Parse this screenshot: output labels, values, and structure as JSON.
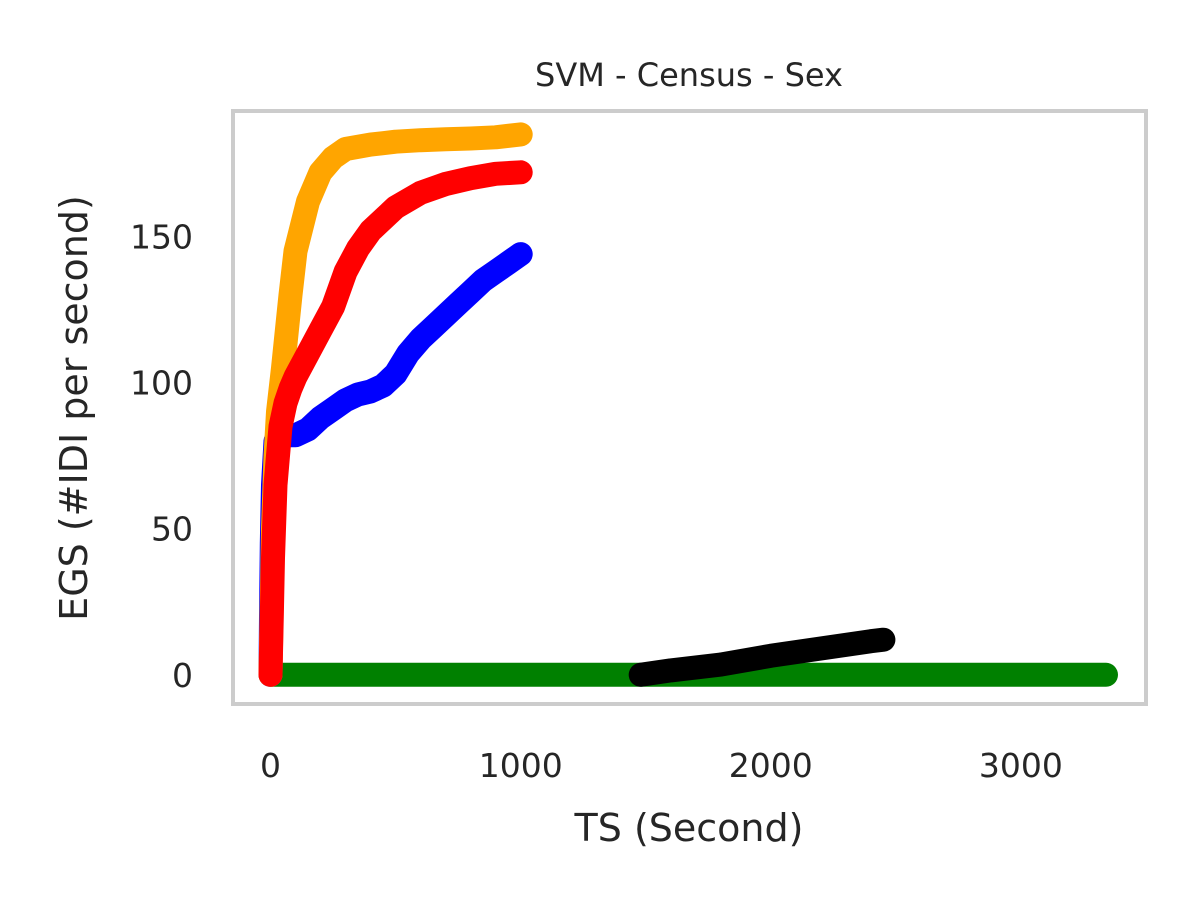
{
  "chart_data": {
    "type": "line",
    "title": "SVM - Census - Sex",
    "xlabel": "TS (Second)",
    "ylabel": "EGS (#IDI  per second)",
    "xlim": [
      -150,
      3500
    ],
    "ylim": [
      -10,
      193
    ],
    "xticks": [
      0,
      1000,
      2000,
      3000
    ],
    "xtick_labels": [
      "0",
      "1000",
      "2000",
      "3000"
    ],
    "yticks": [
      0,
      50,
      100,
      150
    ],
    "ytick_labels": [
      "0",
      "50",
      "100",
      "150"
    ],
    "grid": false,
    "frame_color": "#cccccc",
    "series": [
      {
        "color": "#008000",
        "x": [
          0,
          500,
          1000,
          1500,
          2000,
          2500,
          3000,
          3340
        ],
        "y": [
          0,
          0,
          0,
          0,
          0,
          0,
          0,
          0
        ]
      },
      {
        "color": "#000000",
        "x": [
          1480,
          1600,
          1800,
          2000,
          2200,
          2400,
          2450
        ],
        "y": [
          0,
          1.5,
          3.5,
          6.5,
          9,
          11.5,
          12
        ]
      },
      {
        "color": "#0000ff",
        "x": [
          0,
          2,
          5,
          10,
          20,
          40,
          60,
          100,
          150,
          200,
          250,
          300,
          350,
          400,
          450,
          500,
          550,
          600,
          650,
          700,
          750,
          800,
          850,
          900,
          950,
          1000
        ],
        "y": [
          0,
          20,
          45,
          65,
          80,
          83,
          82,
          82,
          84,
          88,
          91,
          94,
          96,
          97,
          99,
          103,
          110,
          115,
          119,
          123,
          127,
          131,
          135,
          138,
          141,
          144
        ]
      },
      {
        "color": "#ffa500",
        "x": [
          0,
          5,
          10,
          20,
          30,
          50,
          80,
          100,
          150,
          200,
          250,
          300,
          400,
          500,
          600,
          700,
          800,
          900,
          1000
        ],
        "y": [
          0,
          25,
          50,
          75,
          90,
          105,
          130,
          145,
          162,
          172,
          177,
          180,
          181.5,
          182.5,
          183,
          183.3,
          183.6,
          184,
          185
        ]
      },
      {
        "color": "#ff0000",
        "x": [
          0,
          5,
          10,
          20,
          40,
          60,
          80,
          100,
          150,
          200,
          250,
          300,
          350,
          400,
          500,
          600,
          700,
          800,
          900,
          1000
        ],
        "y": [
          0,
          20,
          40,
          65,
          85,
          93,
          98,
          102,
          110,
          118,
          126,
          138,
          146,
          152,
          160,
          165,
          168,
          170,
          171.5,
          172
        ]
      }
    ]
  }
}
